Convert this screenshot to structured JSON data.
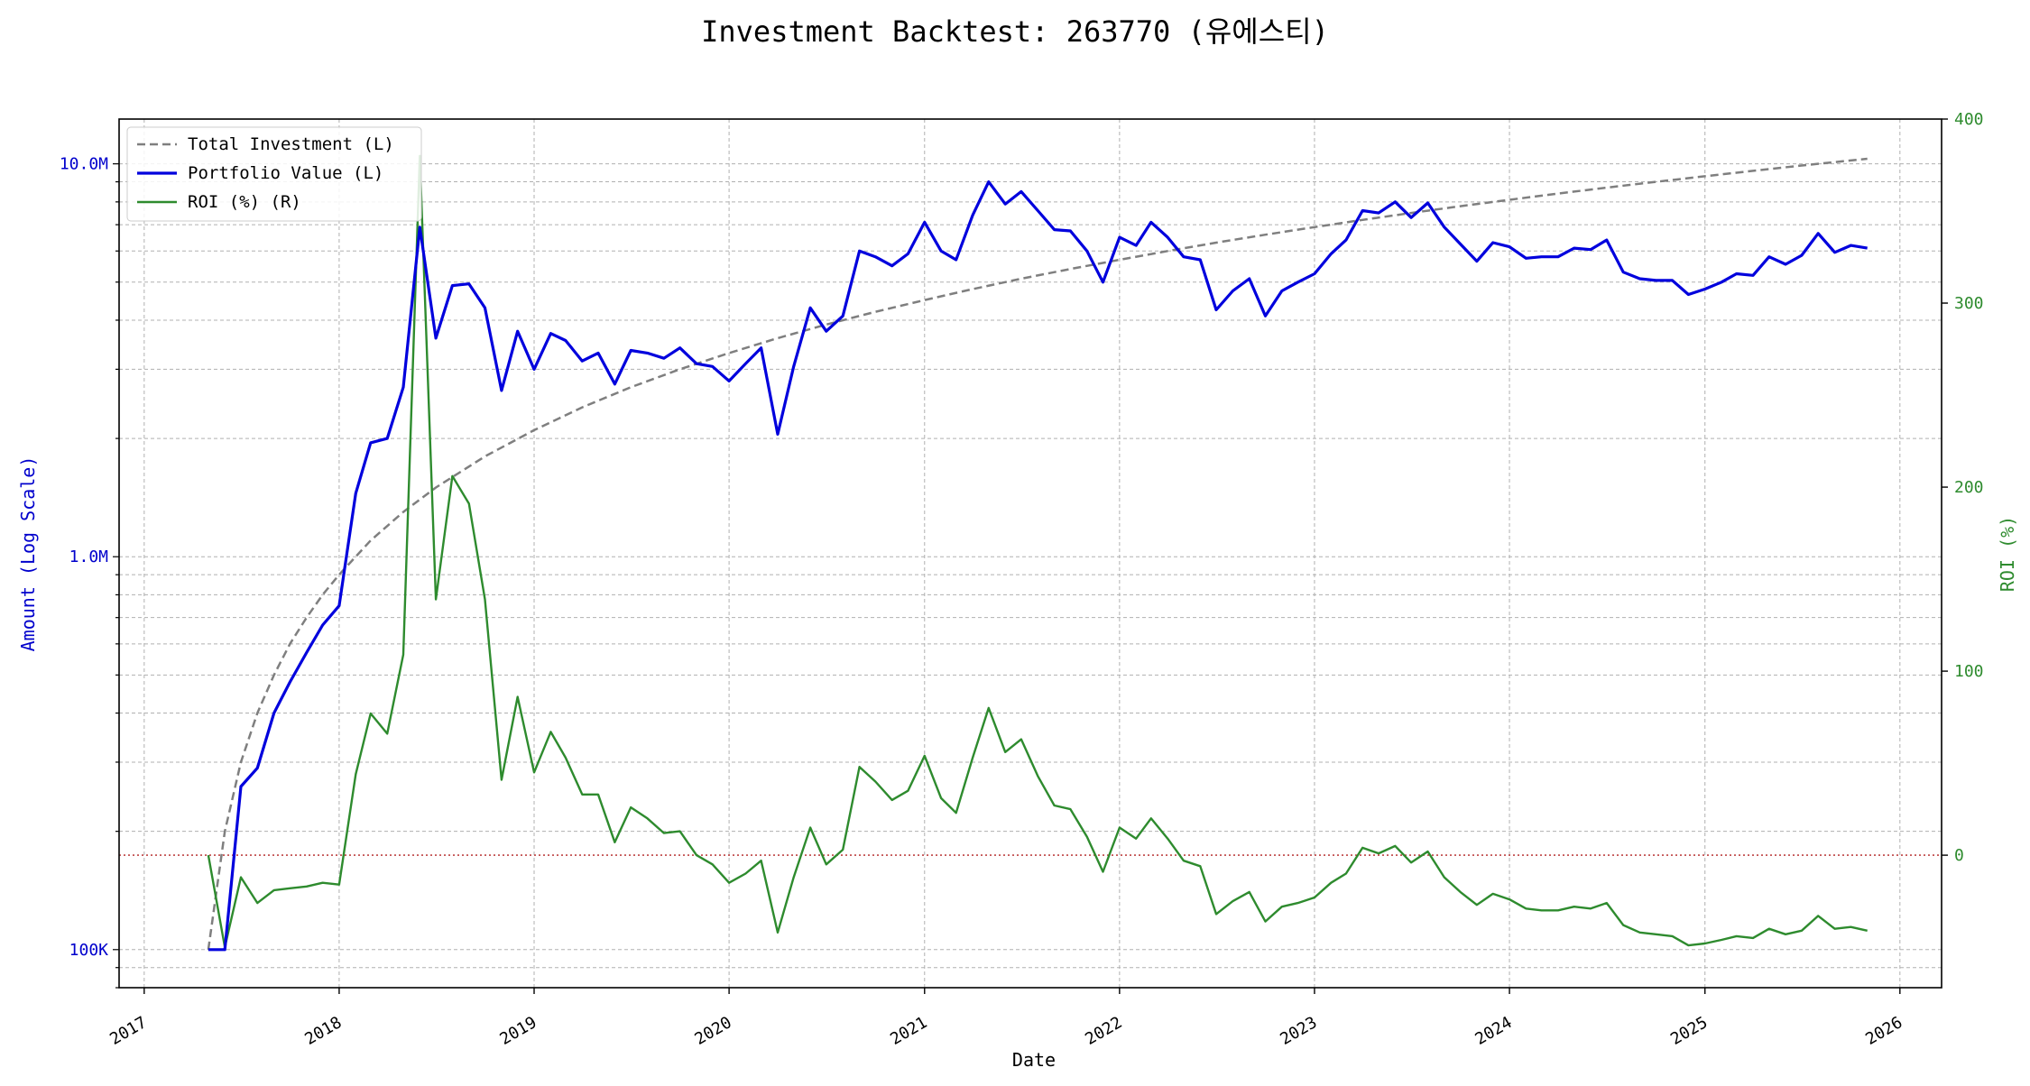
{
  "chart_data": {
    "type": "line",
    "title": "Investment Backtest: 263770 (유에스티)",
    "xlabel": "Date",
    "ylabel_left": "Amount (Log Scale)",
    "ylabel_right": "ROI (%)",
    "y_left_scale": "log",
    "y_left_range": [
      80000,
      13000000
    ],
    "y_right_range": [
      -72,
      400
    ],
    "x_range": [
      "2016-11-15",
      "2026-03-20"
    ],
    "grid": true,
    "legend_position": "top-left",
    "x_ticks": [
      "2017",
      "2018",
      "2019",
      "2020",
      "2021",
      "2022",
      "2023",
      "2024",
      "2025",
      "2026"
    ],
    "y_left_ticks": [
      {
        "value": 100000,
        "label": "100K"
      },
      {
        "value": 1000000,
        "label": "1.0M"
      },
      {
        "value": 10000000,
        "label": "10.0M"
      }
    ],
    "y_right_ticks": [
      0,
      100,
      200,
      300,
      400
    ],
    "zero_reference_line": {
      "axis": "right",
      "value": 0,
      "color": "#b22222"
    },
    "series": [
      {
        "name": "Total Investment (L)",
        "axis": "left",
        "color": "#7f7f7f",
        "style": "dashed",
        "x": [
          "2017-05-01",
          "2017-06-01",
          "2017-07-01",
          "2017-08-01",
          "2017-09-01",
          "2017-10-01",
          "2017-11-01",
          "2017-12-01",
          "2018-01-01",
          "2018-03-01",
          "2018-05-01",
          "2018-07-01",
          "2018-10-01",
          "2019-01-01",
          "2019-04-01",
          "2019-07-01",
          "2019-10-01",
          "2020-01-01",
          "2020-04-01",
          "2020-07-01",
          "2020-10-01",
          "2021-01-01",
          "2021-04-01",
          "2021-07-01",
          "2021-10-01",
          "2022-01-01",
          "2022-04-01",
          "2022-07-01",
          "2022-10-01",
          "2023-01-01",
          "2023-04-01",
          "2023-07-01",
          "2023-10-01",
          "2024-01-01",
          "2024-04-01",
          "2024-07-01",
          "2024-10-01",
          "2025-01-01",
          "2025-04-01",
          "2025-07-01",
          "2025-11-01"
        ],
        "values": [
          100000,
          200000,
          300000,
          400000,
          500000,
          600000,
          700000,
          800000,
          900000,
          1100000,
          1300000,
          1500000,
          1800000,
          2100000,
          2400000,
          2700000,
          3000000,
          3300000,
          3600000,
          3900000,
          4200000,
          4500000,
          4800000,
          5100000,
          5400000,
          5700000,
          6000000,
          6300000,
          6600000,
          6900000,
          7200000,
          7500000,
          7800000,
          8100000,
          8400000,
          8700000,
          9000000,
          9300000,
          9600000,
          9900000,
          10300000
        ]
      },
      {
        "name": "Portfolio Value (L)",
        "axis": "left",
        "color": "#0000dd",
        "style": "solid",
        "x": [
          "2017-05-01",
          "2017-06-01",
          "2017-07-01",
          "2017-08-01",
          "2017-09-01",
          "2017-10-01",
          "2017-11-01",
          "2017-12-01",
          "2018-01-01",
          "2018-02-01",
          "2018-03-01",
          "2018-04-01",
          "2018-05-01",
          "2018-06-01",
          "2018-07-01",
          "2018-08-01",
          "2018-09-01",
          "2018-10-01",
          "2018-11-01",
          "2018-12-01",
          "2019-01-01",
          "2019-02-01",
          "2019-03-01",
          "2019-04-01",
          "2019-05-01",
          "2019-06-01",
          "2019-07-01",
          "2019-08-01",
          "2019-09-01",
          "2019-10-01",
          "2019-11-01",
          "2019-12-01",
          "2020-01-01",
          "2020-02-01",
          "2020-03-01",
          "2020-04-01",
          "2020-05-01",
          "2020-06-01",
          "2020-07-01",
          "2020-08-01",
          "2020-09-01",
          "2020-10-01",
          "2020-11-01",
          "2020-12-01",
          "2021-01-01",
          "2021-02-01",
          "2021-03-01",
          "2021-04-01",
          "2021-05-01",
          "2021-06-01",
          "2021-07-01",
          "2021-08-01",
          "2021-09-01",
          "2021-10-01",
          "2021-11-01",
          "2021-12-01",
          "2022-01-01",
          "2022-02-01",
          "2022-03-01",
          "2022-04-01",
          "2022-05-01",
          "2022-06-01",
          "2022-07-01",
          "2022-08-01",
          "2022-09-01",
          "2022-10-01",
          "2022-11-01",
          "2022-12-01",
          "2023-01-01",
          "2023-02-01",
          "2023-03-01",
          "2023-04-01",
          "2023-05-01",
          "2023-06-01",
          "2023-07-01",
          "2023-08-01",
          "2023-09-01",
          "2023-10-01",
          "2023-11-01",
          "2023-12-01",
          "2024-01-01",
          "2024-02-01",
          "2024-03-01",
          "2024-04-01",
          "2024-05-01",
          "2024-06-01",
          "2024-07-01",
          "2024-08-01",
          "2024-09-01",
          "2024-10-01",
          "2024-11-01",
          "2024-12-01",
          "2025-01-01",
          "2025-02-01",
          "2025-03-01",
          "2025-04-01",
          "2025-05-01",
          "2025-06-01",
          "2025-07-01",
          "2025-08-01",
          "2025-09-01",
          "2025-10-01",
          "2025-11-01"
        ],
        "values": [
          100000,
          100000,
          260000,
          290000,
          400000,
          480000,
          570000,
          670000,
          750000,
          1450000,
          1950000,
          2000000,
          2700000,
          6900000,
          3600000,
          4900000,
          4950000,
          4300000,
          2650000,
          3750000,
          3000000,
          3700000,
          3550000,
          3150000,
          3300000,
          2750000,
          3350000,
          3300000,
          3200000,
          3400000,
          3100000,
          3050000,
          2800000,
          3100000,
          3400000,
          2050000,
          3050000,
          4300000,
          3750000,
          4100000,
          6000000,
          5800000,
          5500000,
          5900000,
          7100000,
          6000000,
          5700000,
          7400000,
          9000000,
          7900000,
          8500000,
          7600000,
          6800000,
          6750000,
          6000000,
          5000000,
          6500000,
          6200000,
          7100000,
          6500000,
          5800000,
          5700000,
          4250000,
          4750000,
          5100000,
          4100000,
          4750000,
          5000000,
          5250000,
          5900000,
          6400000,
          7600000,
          7500000,
          8000000,
          7300000,
          7950000,
          6900000,
          6250000,
          5650000,
          6300000,
          6150000,
          5750000,
          5800000,
          5800000,
          6100000,
          6050000,
          6400000,
          5300000,
          5100000,
          5050000,
          5050000,
          4650000,
          4800000,
          5000000,
          5250000,
          5200000,
          5800000,
          5550000,
          5850000,
          6650000,
          5950000,
          6200000,
          6100000
        ]
      },
      {
        "name": "ROI (%) (R)",
        "axis": "right",
        "color": "#2e8b2e",
        "style": "solid",
        "x": [
          "2017-05-01",
          "2017-06-01",
          "2017-07-01",
          "2017-08-01",
          "2017-09-01",
          "2017-10-01",
          "2017-11-01",
          "2017-12-01",
          "2018-01-01",
          "2018-02-01",
          "2018-03-01",
          "2018-04-01",
          "2018-05-01",
          "2018-06-01",
          "2018-07-01",
          "2018-08-01",
          "2018-09-01",
          "2018-10-01",
          "2018-11-01",
          "2018-12-01",
          "2019-01-01",
          "2019-02-01",
          "2019-03-01",
          "2019-04-01",
          "2019-05-01",
          "2019-06-01",
          "2019-07-01",
          "2019-08-01",
          "2019-09-01",
          "2019-10-01",
          "2019-11-01",
          "2019-12-01",
          "2020-01-01",
          "2020-02-01",
          "2020-03-01",
          "2020-04-01",
          "2020-05-01",
          "2020-06-01",
          "2020-07-01",
          "2020-08-01",
          "2020-09-01",
          "2020-10-01",
          "2020-11-01",
          "2020-12-01",
          "2021-01-01",
          "2021-02-01",
          "2021-03-01",
          "2021-04-01",
          "2021-05-01",
          "2021-06-01",
          "2021-07-01",
          "2021-08-01",
          "2021-09-01",
          "2021-10-01",
          "2021-11-01",
          "2021-12-01",
          "2022-01-01",
          "2022-02-01",
          "2022-03-01",
          "2022-04-01",
          "2022-05-01",
          "2022-06-01",
          "2022-07-01",
          "2022-08-01",
          "2022-09-01",
          "2022-10-01",
          "2022-11-01",
          "2022-12-01",
          "2023-01-01",
          "2023-02-01",
          "2023-03-01",
          "2023-04-01",
          "2023-05-01",
          "2023-06-01",
          "2023-07-01",
          "2023-08-01",
          "2023-09-01",
          "2023-10-01",
          "2023-11-01",
          "2023-12-01",
          "2024-01-01",
          "2024-02-01",
          "2024-03-01",
          "2024-04-01",
          "2024-05-01",
          "2024-06-01",
          "2024-07-01",
          "2024-08-01",
          "2024-09-01",
          "2024-10-01",
          "2024-11-01",
          "2024-12-01",
          "2025-01-01",
          "2025-02-01",
          "2025-03-01",
          "2025-04-01",
          "2025-05-01",
          "2025-06-01",
          "2025-07-01",
          "2025-08-01",
          "2025-09-01",
          "2025-10-01",
          "2025-11-01"
        ],
        "values": [
          0,
          -50,
          -12,
          -26,
          -19,
          -18,
          -17,
          -15,
          -16,
          44,
          77,
          66,
          109,
          380,
          139,
          206,
          191,
          139,
          41,
          86,
          45,
          67,
          53,
          33,
          33,
          7,
          26,
          20,
          12,
          13,
          0,
          -5,
          -15,
          -10,
          -3,
          -42,
          -12,
          15,
          -5,
          3,
          48,
          40,
          30,
          35,
          54,
          31,
          23,
          53,
          80,
          56,
          63,
          43,
          27,
          25,
          10,
          -9,
          15,
          9,
          20,
          9,
          -3,
          -6,
          -32,
          -25,
          -20,
          -36,
          -28,
          -26,
          -23,
          -15,
          -10,
          4,
          1,
          5,
          -4,
          2,
          -12,
          -20,
          -27,
          -21,
          -24,
          -29,
          -30,
          -30,
          -28,
          -29,
          -26,
          -38,
          -42,
          -43,
          -44,
          -49,
          -48,
          -46,
          -44,
          -45,
          -40,
          -43,
          -41,
          -33,
          -40,
          -39,
          -41
        ]
      }
    ]
  }
}
